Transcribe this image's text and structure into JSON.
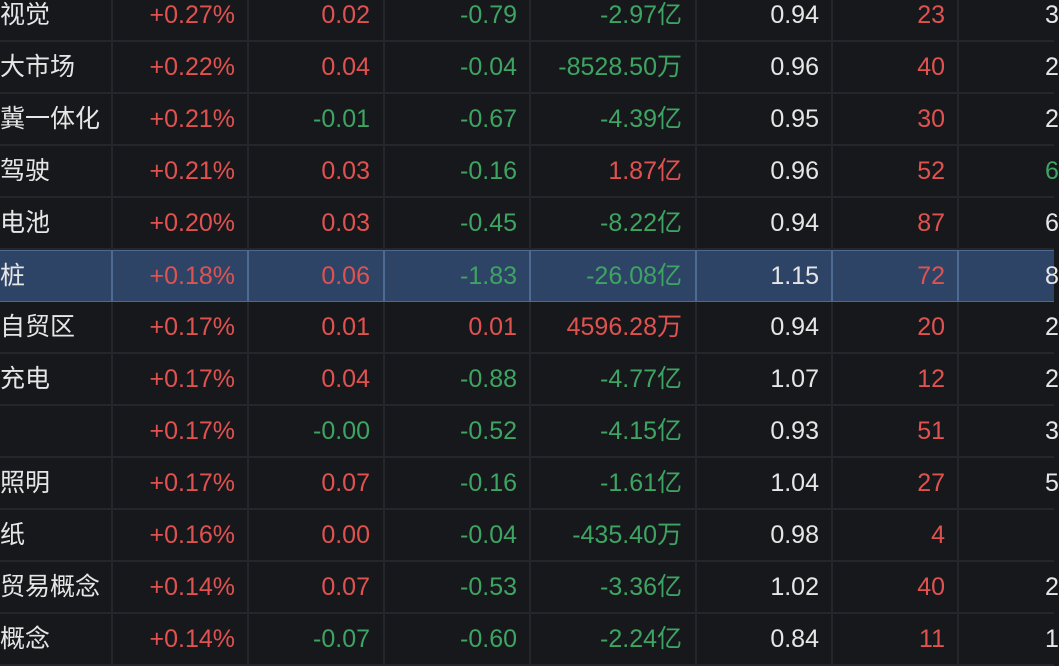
{
  "columns_visible": [
    "name",
    "change_pct",
    "col3",
    "col4",
    "net_flow",
    "ratio",
    "count",
    "count2"
  ],
  "colors": {
    "background": "#17181c",
    "grid": "#24262b",
    "selected_row": "#2e4467",
    "up": "#e0524f",
    "down": "#3da462",
    "neutral": "#e6e6e6"
  },
  "rows": [
    {
      "name": "视觉",
      "pct": "+0.27%",
      "pct_c": "red",
      "a": "0.02",
      "a_c": "red",
      "b": "-0.79",
      "b_c": "green",
      "flow": "-2.97亿",
      "flow_c": "green",
      "ratio": "0.94",
      "n": "23",
      "n_c": "red",
      "m": "3",
      "m_c": "white"
    },
    {
      "name": "大市场",
      "pct": "+0.22%",
      "pct_c": "red",
      "a": "0.04",
      "a_c": "red",
      "b": "-0.04",
      "b_c": "green",
      "flow": "-8528.50万",
      "flow_c": "green",
      "ratio": "0.96",
      "n": "40",
      "n_c": "red",
      "m": "2",
      "m_c": "white"
    },
    {
      "name": "冀一体化",
      "pct": "+0.21%",
      "pct_c": "red",
      "a": "-0.01",
      "a_c": "green",
      "b": "-0.67",
      "b_c": "green",
      "flow": "-4.39亿",
      "flow_c": "green",
      "ratio": "0.95",
      "n": "30",
      "n_c": "red",
      "m": "2",
      "m_c": "white"
    },
    {
      "name": "驾驶",
      "pct": "+0.21%",
      "pct_c": "red",
      "a": "0.03",
      "a_c": "red",
      "b": "-0.16",
      "b_c": "green",
      "flow": "1.87亿",
      "flow_c": "red",
      "ratio": "0.96",
      "n": "52",
      "n_c": "red",
      "m": "6",
      "m_c": "green"
    },
    {
      "name": "电池",
      "pct": "+0.20%",
      "pct_c": "red",
      "a": "0.03",
      "a_c": "red",
      "b": "-0.45",
      "b_c": "green",
      "flow": "-8.22亿",
      "flow_c": "green",
      "ratio": "0.94",
      "n": "87",
      "n_c": "red",
      "m": "6",
      "m_c": "white"
    },
    {
      "name": "桩",
      "pct": "+0.18%",
      "pct_c": "red",
      "a": "0.06",
      "a_c": "red",
      "b": "-1.83",
      "b_c": "green",
      "flow": "-26.08亿",
      "flow_c": "green",
      "ratio": "1.15",
      "n": "72",
      "n_c": "red",
      "m": "8",
      "m_c": "white",
      "selected": true
    },
    {
      "name": "自贸区",
      "pct": "+0.17%",
      "pct_c": "red",
      "a": "0.01",
      "a_c": "red",
      "b": "0.01",
      "b_c": "red",
      "flow": "4596.28万",
      "flow_c": "red",
      "ratio": "0.94",
      "n": "20",
      "n_c": "red",
      "m": "2",
      "m_c": "white"
    },
    {
      "name": "充电",
      "pct": "+0.17%",
      "pct_c": "red",
      "a": "0.04",
      "a_c": "red",
      "b": "-0.88",
      "b_c": "green",
      "flow": "-4.77亿",
      "flow_c": "green",
      "ratio": "1.07",
      "n": "12",
      "n_c": "red",
      "m": "2",
      "m_c": "white"
    },
    {
      "name": "",
      "pct": "+0.17%",
      "pct_c": "red",
      "a": "-0.00",
      "a_c": "green",
      "b": "-0.52",
      "b_c": "green",
      "flow": "-4.15亿",
      "flow_c": "green",
      "ratio": "0.93",
      "n": "51",
      "n_c": "red",
      "m": "3",
      "m_c": "white"
    },
    {
      "name": "照明",
      "pct": "+0.17%",
      "pct_c": "red",
      "a": "0.07",
      "a_c": "red",
      "b": "-0.16",
      "b_c": "green",
      "flow": "-1.61亿",
      "flow_c": "green",
      "ratio": "1.04",
      "n": "27",
      "n_c": "red",
      "m": "5",
      "m_c": "white"
    },
    {
      "name": "纸",
      "pct": "+0.16%",
      "pct_c": "red",
      "a": "0.00",
      "a_c": "red",
      "b": "-0.04",
      "b_c": "green",
      "flow": "-435.40万",
      "flow_c": "green",
      "ratio": "0.98",
      "n": "4",
      "n_c": "red",
      "m": "",
      "m_c": "white"
    },
    {
      "name": "贸易概念",
      "pct": "+0.14%",
      "pct_c": "red",
      "a": "0.07",
      "a_c": "red",
      "b": "-0.53",
      "b_c": "green",
      "flow": "-3.36亿",
      "flow_c": "green",
      "ratio": "1.02",
      "n": "40",
      "n_c": "red",
      "m": "2",
      "m_c": "white"
    },
    {
      "name": "概念",
      "pct": "+0.14%",
      "pct_c": "red",
      "a": "-0.07",
      "a_c": "green",
      "b": "-0.60",
      "b_c": "green",
      "flow": "-2.24亿",
      "flow_c": "green",
      "ratio": "0.84",
      "n": "11",
      "n_c": "red",
      "m": "1",
      "m_c": "white"
    }
  ]
}
